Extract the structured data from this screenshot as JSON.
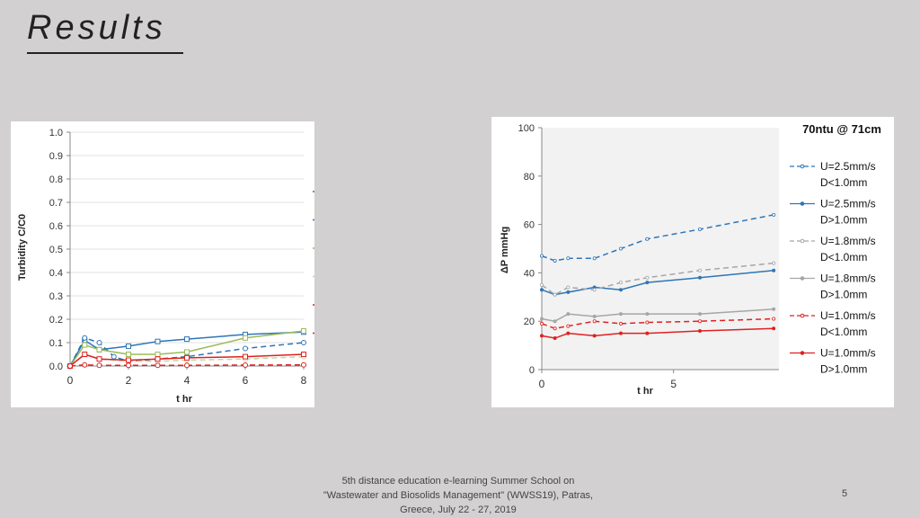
{
  "slide": {
    "title": "Results",
    "footer": [
      "5th distance education e-learning Summer School on",
      "\"Wastewater and Biosolids Management\" (WWSS19), Patras,",
      "Greece, July 22 - 27, 2019"
    ],
    "page_number": "5"
  },
  "chart_data": [
    {
      "type": "line",
      "title": "70ntu @ 71cm",
      "xlabel": "t   hr",
      "ylabel": "Turbidity  C/C0",
      "xlim": [
        0,
        8
      ],
      "ylim": [
        0,
        1.0
      ],
      "xticks": [
        "0",
        "2",
        "4",
        "6",
        "8"
      ],
      "yticks": [
        "0.0",
        "0.1",
        "0.2",
        "0.3",
        "0.4",
        "0.5",
        "0.6",
        "0.7",
        "0.8",
        "0.9",
        "1.0"
      ],
      "grid": true,
      "legend_position": "right",
      "series": [
        {
          "name": "U=2.5mm/s D>1.0mm",
          "color": "#2e75b6",
          "dash": false,
          "marker": "square",
          "x": [
            0,
            0.5,
            1,
            2,
            3,
            4,
            6,
            8
          ],
          "y": [
            0,
            0.11,
            0.07,
            0.085,
            0.105,
            0.115,
            0.135,
            0.145
          ]
        },
        {
          "name": "U=2.5mm/s D<1.0mm",
          "color": "#2e75b6",
          "dash": true,
          "marker": "circle",
          "x": [
            0,
            0.5,
            1,
            1.5,
            2,
            3,
            4,
            6,
            8
          ],
          "y": [
            0,
            0.12,
            0.1,
            0.04,
            0.02,
            0.03,
            0.04,
            0.075,
            0.1
          ]
        },
        {
          "name": "U=1.8mm/s D>1.0mm",
          "color": "#9bbb59",
          "dash": false,
          "marker": "square",
          "x": [
            0,
            0.5,
            1,
            2,
            3,
            4,
            6,
            8
          ],
          "y": [
            0,
            0.09,
            0.07,
            0.05,
            0.05,
            0.06,
            0.12,
            0.15
          ]
        },
        {
          "name": "U=1.8mm/s Dg<1.0mm",
          "color": "#c4d79b",
          "dash": true,
          "marker": "circle",
          "x": [
            0,
            0.5,
            1,
            2,
            3,
            4,
            6,
            8
          ],
          "y": [
            0,
            0.05,
            0.03,
            0.02,
            0.02,
            0.025,
            0.03,
            0.04
          ]
        },
        {
          "name": "U=1.0mm/s D>1.0mm",
          "color": "#e02020",
          "dash": false,
          "marker": "square",
          "x": [
            0,
            0.5,
            1,
            2,
            3,
            4,
            6,
            8
          ],
          "y": [
            0,
            0.05,
            0.03,
            0.025,
            0.03,
            0.035,
            0.04,
            0.05
          ]
        },
        {
          "name": "U=1.0mm/s D<1.0mm",
          "color": "#e02020",
          "dash": true,
          "marker": "circle",
          "x": [
            0,
            0.5,
            1,
            2,
            3,
            4,
            6,
            8
          ],
          "y": [
            0,
            0.005,
            0.003,
            0.003,
            0.003,
            0.003,
            0.004,
            0.005
          ]
        }
      ]
    },
    {
      "type": "line",
      "title": "70ntu @ 71cm",
      "xlabel": "t   hr",
      "ylabel": "ΔP   mmHg",
      "xlim": [
        0,
        9
      ],
      "ylim": [
        0,
        100
      ],
      "xticks": [
        "0",
        "5"
      ],
      "yticks": [
        "0",
        "20",
        "40",
        "60",
        "80",
        "100"
      ],
      "grid": false,
      "legend_position": "right",
      "series": [
        {
          "name": "U=2.5mm/s D<1.0mm",
          "color": "#2e75b6",
          "dash": true,
          "x": [
            0,
            0.5,
            1,
            2,
            3,
            4,
            6,
            8.8
          ],
          "y": [
            47,
            45,
            46,
            46,
            50,
            54,
            58,
            64
          ]
        },
        {
          "name": "U=2.5mm/s D>1.0mm",
          "color": "#2e75b6",
          "dash": false,
          "x": [
            0,
            0.5,
            1,
            2,
            3,
            4,
            6,
            8.8
          ],
          "y": [
            33,
            31,
            32,
            34,
            33,
            36,
            38,
            41
          ]
        },
        {
          "name": "U=1.8mm/s D<1.0mm",
          "color": "#a6a6a6",
          "dash": true,
          "x": [
            0,
            0.5,
            1,
            2,
            3,
            4,
            6,
            8.8
          ],
          "y": [
            35,
            31,
            34,
            33,
            36,
            38,
            41,
            44
          ]
        },
        {
          "name": "U=1.8mm/s D>1.0mm",
          "color": "#a6a6a6",
          "dash": false,
          "x": [
            0,
            0.5,
            1,
            2,
            3,
            4,
            6,
            8.8
          ],
          "y": [
            21,
            20,
            23,
            22,
            23,
            23,
            23,
            25
          ]
        },
        {
          "name": "U=1.0mm/s D<1.0mm",
          "color": "#e02020",
          "dash": true,
          "x": [
            0,
            0.5,
            1,
            2,
            3,
            4,
            6,
            8.8
          ],
          "y": [
            19,
            17,
            18,
            20,
            19,
            19.5,
            20,
            21
          ]
        },
        {
          "name": "U=1.0mm/s D>1.0mm",
          "color": "#e02020",
          "dash": false,
          "x": [
            0,
            0.5,
            1,
            2,
            3,
            4,
            6,
            8.8
          ],
          "y": [
            14,
            13,
            15,
            14,
            15,
            15,
            16,
            17
          ]
        }
      ]
    }
  ]
}
